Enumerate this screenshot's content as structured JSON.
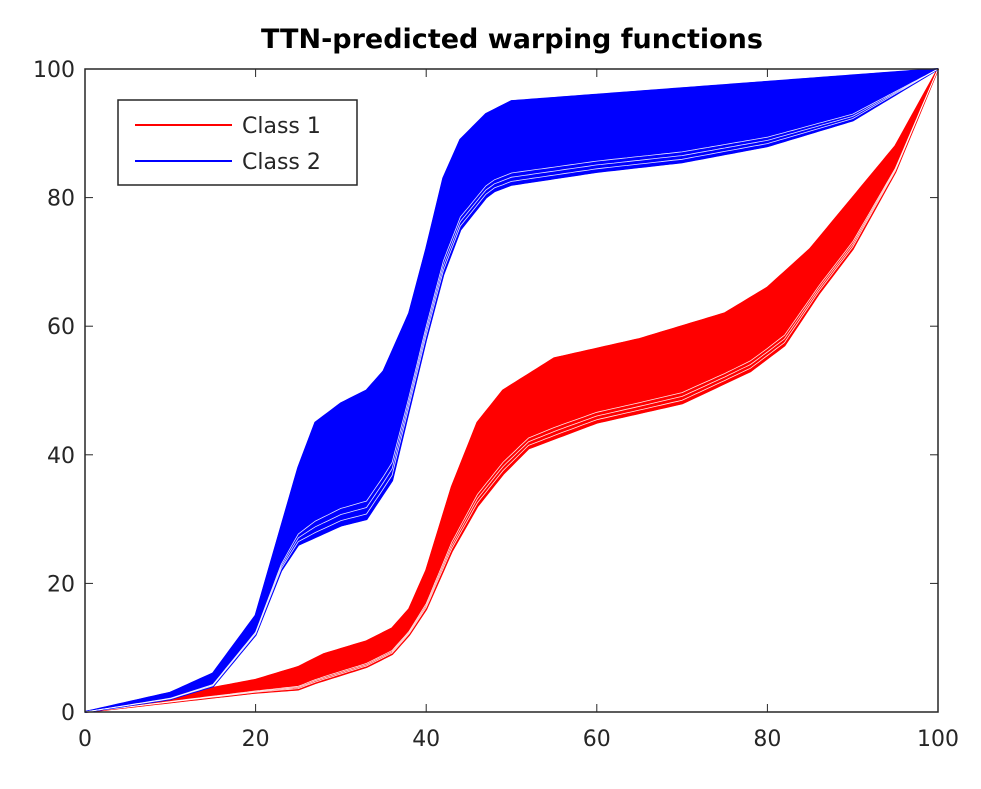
{
  "chart_data": {
    "type": "line",
    "title": "TTN-predicted warping functions",
    "xlabel": "",
    "ylabel": "",
    "xlim": [
      0,
      100
    ],
    "ylim": [
      0,
      100
    ],
    "xticks": [
      "0",
      "20",
      "40",
      "60",
      "80",
      "100"
    ],
    "yticks": [
      "0",
      "20",
      "40",
      "60",
      "80",
      "100"
    ],
    "grid": false,
    "legend_position": "top-left",
    "series": [
      {
        "name": "Class 1",
        "color": "#ff0000",
        "upper": {
          "x": [
            0,
            5,
            10,
            20,
            25,
            28,
            33,
            36,
            38,
            40,
            43,
            46,
            49,
            55,
            65,
            75,
            80,
            85,
            90,
            95,
            100
          ],
          "y": [
            0,
            1,
            2.5,
            5,
            7,
            9,
            11,
            13,
            16,
            22,
            35,
            45,
            50,
            55,
            58,
            62,
            66,
            72,
            80,
            88,
            100
          ]
        },
        "lower": {
          "x": [
            0,
            10,
            20,
            25,
            27,
            33,
            36,
            38,
            40,
            43,
            46,
            49,
            52,
            60,
            70,
            78,
            82,
            86,
            90,
            95,
            100
          ],
          "y": [
            0,
            1.5,
            3,
            3.5,
            4.5,
            7,
            9,
            12,
            16,
            25,
            32,
            37,
            41,
            45,
            48,
            53,
            57,
            65,
            72,
            84,
            100
          ]
        }
      },
      {
        "name": "Class 2",
        "color": "#0000ff",
        "upper": {
          "x": [
            0,
            10,
            15,
            20,
            25,
            27,
            30,
            33,
            35,
            38,
            40,
            42,
            44,
            47,
            50,
            60,
            80,
            100
          ],
          "y": [
            0,
            3,
            6,
            15,
            38,
            45,
            48,
            50,
            53,
            62,
            72,
            83,
            89,
            93,
            95,
            96,
            98,
            100
          ]
        },
        "lower": {
          "x": [
            0,
            10,
            15,
            20,
            23,
            25,
            30,
            33,
            36,
            38,
            40,
            42,
            44,
            47,
            48,
            50,
            60,
            70,
            80,
            90,
            100
          ],
          "y": [
            0,
            2,
            4,
            12,
            22,
            26,
            29,
            30,
            36,
            47,
            58,
            68,
            75,
            80,
            81,
            82,
            84,
            85.5,
            88,
            92,
            100
          ]
        }
      }
    ]
  }
}
